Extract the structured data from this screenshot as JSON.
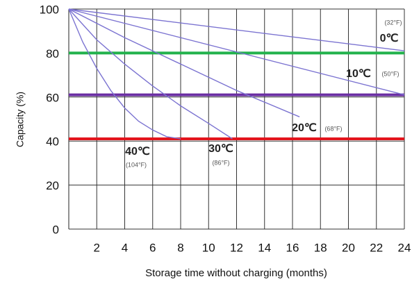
{
  "chart_data": {
    "type": "line",
    "ylabel": "Capacity (%)",
    "xlabel": "Storage time without charging (months)",
    "xlim": [
      0,
      24
    ],
    "xticks": [
      2,
      4,
      6,
      8,
      10,
      12,
      14,
      16,
      18,
      20,
      22,
      24
    ],
    "ylim": [
      0,
      100
    ],
    "yticks": [
      0,
      20,
      40,
      60,
      80,
      100
    ],
    "grid": true,
    "series": [
      {
        "name": "0℃",
        "sublabel": "(32°F)",
        "color": "#7b73d1",
        "x": [
          0,
          24
        ],
        "values": [
          100,
          81
        ]
      },
      {
        "name": "10℃",
        "sublabel": "(50°F)",
        "color": "#7b73d1",
        "x": [
          0,
          24
        ],
        "values": [
          100,
          61
        ]
      },
      {
        "name": "20℃",
        "sublabel": "(68°F)",
        "color": "#7b73d1",
        "x": [
          0,
          4,
          8,
          12,
          16.5
        ],
        "values": [
          100,
          87,
          75,
          63,
          51
        ]
      },
      {
        "name": "30℃",
        "sublabel": "(86°F)",
        "color": "#7b73d1",
        "x": [
          0,
          2,
          4,
          6,
          8,
          10,
          11.7
        ],
        "values": [
          100,
          86,
          75,
          65,
          56,
          48,
          41
        ]
      },
      {
        "name": "40℃",
        "sublabel": "(104°F)",
        "color": "#7b73d1",
        "x": [
          0,
          1,
          2,
          3,
          4,
          5,
          6,
          7,
          8
        ],
        "values": [
          100,
          85,
          73,
          63,
          55,
          49,
          45,
          42,
          41
        ]
      }
    ],
    "reference_lines": [
      {
        "value": 80,
        "color": "#22b24c"
      },
      {
        "value": 61,
        "color": "#6b2fa3"
      },
      {
        "value": 41,
        "color": "#e3141c"
      }
    ]
  }
}
